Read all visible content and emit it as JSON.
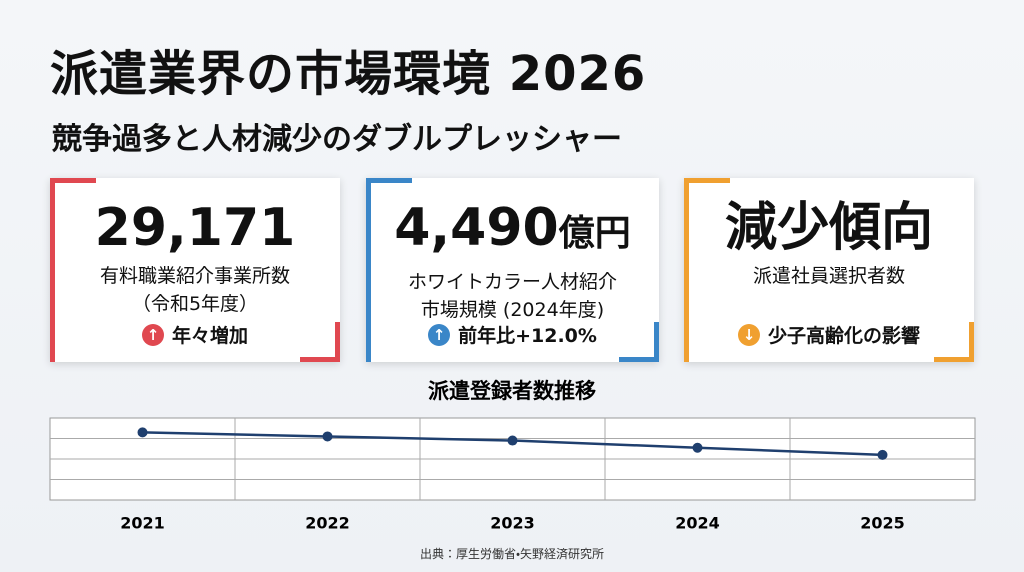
{
  "header": {
    "title": "派遣業界の市場環境 2026",
    "subtitle": "競争過多と人材減少のダブルプレッシャー"
  },
  "cards": [
    {
      "value": "29,171",
      "unit": "",
      "label_lines": [
        "有料職業紹介事業所数",
        "（令和5年度）"
      ],
      "note": "年々増加",
      "direction": "up",
      "color": "#e04850"
    },
    {
      "value": "4,490",
      "unit": "億円",
      "label_lines": [
        "ホワイトカラー人材紹介",
        "市場規模 (2024年度)"
      ],
      "note": "前年比+12.0%",
      "direction": "up",
      "color": "#3a86c8"
    },
    {
      "value": "減少傾向",
      "unit": "",
      "label_lines": [
        "派遣社員選択者数"
      ],
      "note": "少子高齢化の影響",
      "direction": "down",
      "color": "#f0a030"
    }
  ],
  "chart_data": {
    "type": "line",
    "title": "派遣登録者数推移",
    "categories": [
      "2021",
      "2022",
      "2023",
      "2024",
      "2025"
    ],
    "values": [
      3.3,
      3.1,
      2.9,
      2.55,
      2.2
    ],
    "color": "#1f3f6e",
    "ylim": [
      0,
      4
    ],
    "grid": true
  },
  "source": "出典：厚生労働省・矢野経済研究所"
}
